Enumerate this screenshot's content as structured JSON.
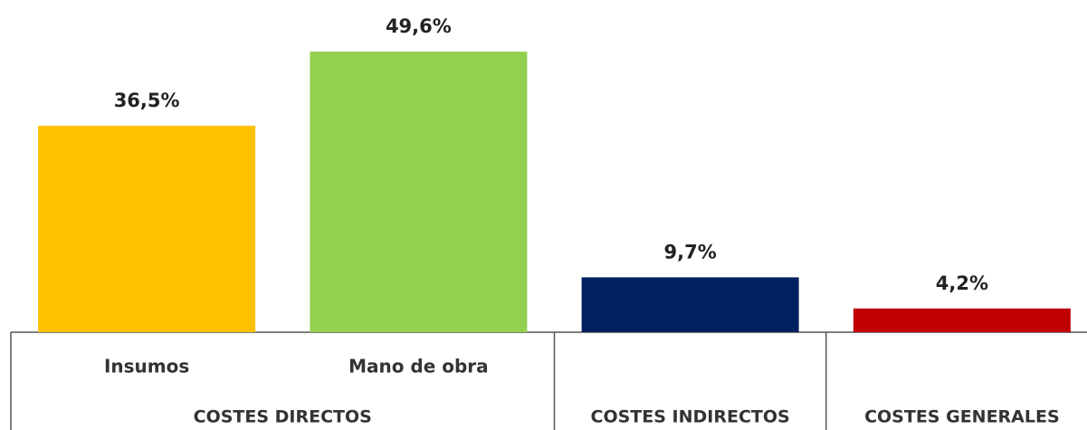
{
  "chart_data": {
    "type": "bar",
    "groups": [
      {
        "name": "COSTES DIRECTOS",
        "bars": [
          {
            "category": "Insumos",
            "value": 36.5,
            "value_label": "36,5%",
            "color": "#ffc000"
          },
          {
            "category": "Mano de obra",
            "value": 49.6,
            "value_label": "49,6%",
            "color": "#92d050"
          }
        ]
      },
      {
        "name": "COSTES INDIRECTOS",
        "bars": [
          {
            "category": null,
            "value": 9.7,
            "value_label": "9,7%",
            "color": "#002060"
          }
        ]
      },
      {
        "name": "COSTES GENERALES",
        "bars": [
          {
            "category": null,
            "value": 4.2,
            "value_label": "4,2%",
            "color": "#c00000"
          }
        ]
      }
    ]
  }
}
